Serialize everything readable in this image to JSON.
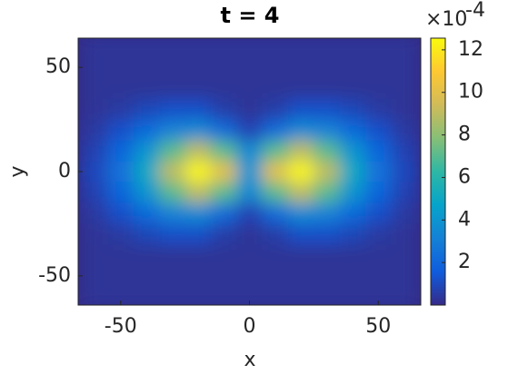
{
  "chart_data": {
    "type": "heatmap",
    "title": "t = 4",
    "x_label": "x",
    "y_label": "y",
    "x": [
      -60,
      -50,
      -40,
      -30,
      -20,
      -10,
      0,
      10,
      20,
      30,
      40,
      50,
      60
    ],
    "y": [
      60,
      50,
      40,
      30,
      20,
      10,
      0,
      -10,
      -20,
      -30,
      -40,
      -50,
      -60
    ],
    "z": [
      [
        0.3,
        0.3,
        0.3,
        0.3,
        0.3,
        0.3,
        0.3,
        0.3,
        0.3,
        0.3,
        0.3,
        0.3,
        0.3
      ],
      [
        0.3,
        0.3,
        0.3,
        0.3,
        0.3,
        0.3,
        0.3,
        0.3,
        0.3,
        0.3,
        0.3,
        0.3,
        0.3
      ],
      [
        0.3,
        0.3,
        0.3,
        0.3,
        0.3,
        0.3,
        0.3,
        0.3,
        0.3,
        0.3,
        0.3,
        0.3,
        0.3
      ],
      [
        0.3,
        0.5,
        0.9,
        1.2,
        1.2,
        0.6,
        0.3,
        0.6,
        1.2,
        1.2,
        0.9,
        0.5,
        0.3
      ],
      [
        0.5,
        1.2,
        2.2,
        3.2,
        3.5,
        2.2,
        0.8,
        2.2,
        3.5,
        3.2,
        2.2,
        1.2,
        0.5
      ],
      [
        0.8,
        2,
        4,
        7,
        9,
        7,
        3.5,
        7,
        9,
        7,
        4,
        2,
        0.8
      ],
      [
        1,
        2.5,
        5,
        9,
        12.4,
        10,
        4,
        10,
        12.4,
        9,
        5,
        2.5,
        1
      ],
      [
        0.8,
        2,
        4,
        7,
        9,
        7,
        3.5,
        7,
        9,
        7,
        4,
        2,
        0.8
      ],
      [
        0.5,
        1.2,
        2.2,
        3.2,
        3.5,
        2.2,
        0.8,
        2.2,
        3.5,
        3.2,
        2.2,
        1.2,
        0.5
      ],
      [
        0.3,
        0.5,
        0.9,
        1.2,
        1.2,
        0.6,
        0.3,
        0.6,
        1.2,
        1.2,
        0.9,
        0.5,
        0.3
      ],
      [
        0.3,
        0.3,
        0.3,
        0.3,
        0.3,
        0.3,
        0.3,
        0.3,
        0.3,
        0.3,
        0.3,
        0.3,
        0.3
      ],
      [
        0.3,
        0.3,
        0.3,
        0.3,
        0.3,
        0.3,
        0.3,
        0.3,
        0.3,
        0.3,
        0.3,
        0.3,
        0.3
      ],
      [
        0.3,
        0.3,
        0.3,
        0.3,
        0.3,
        0.3,
        0.3,
        0.3,
        0.3,
        0.3,
        0.3,
        0.3,
        0.3
      ]
    ],
    "xlim": [
      -66.5,
      66.5
    ],
    "ylim": [
      -64,
      64
    ],
    "xticks": [
      -50,
      0,
      50
    ],
    "yticks": [
      -50,
      0,
      50
    ],
    "clim": [
      0,
      12.55
    ],
    "cticks": [
      2,
      4,
      6,
      8,
      10,
      12
    ],
    "colorbar_exponent": {
      "base": "×10",
      "power": "-4"
    },
    "colormap": [
      "#352a87",
      "#0f5cdd",
      "#1481d6",
      "#06a4ca",
      "#2eb7a4",
      "#87bf77",
      "#d1bb59",
      "#fec832",
      "#f9fb0e"
    ]
  }
}
